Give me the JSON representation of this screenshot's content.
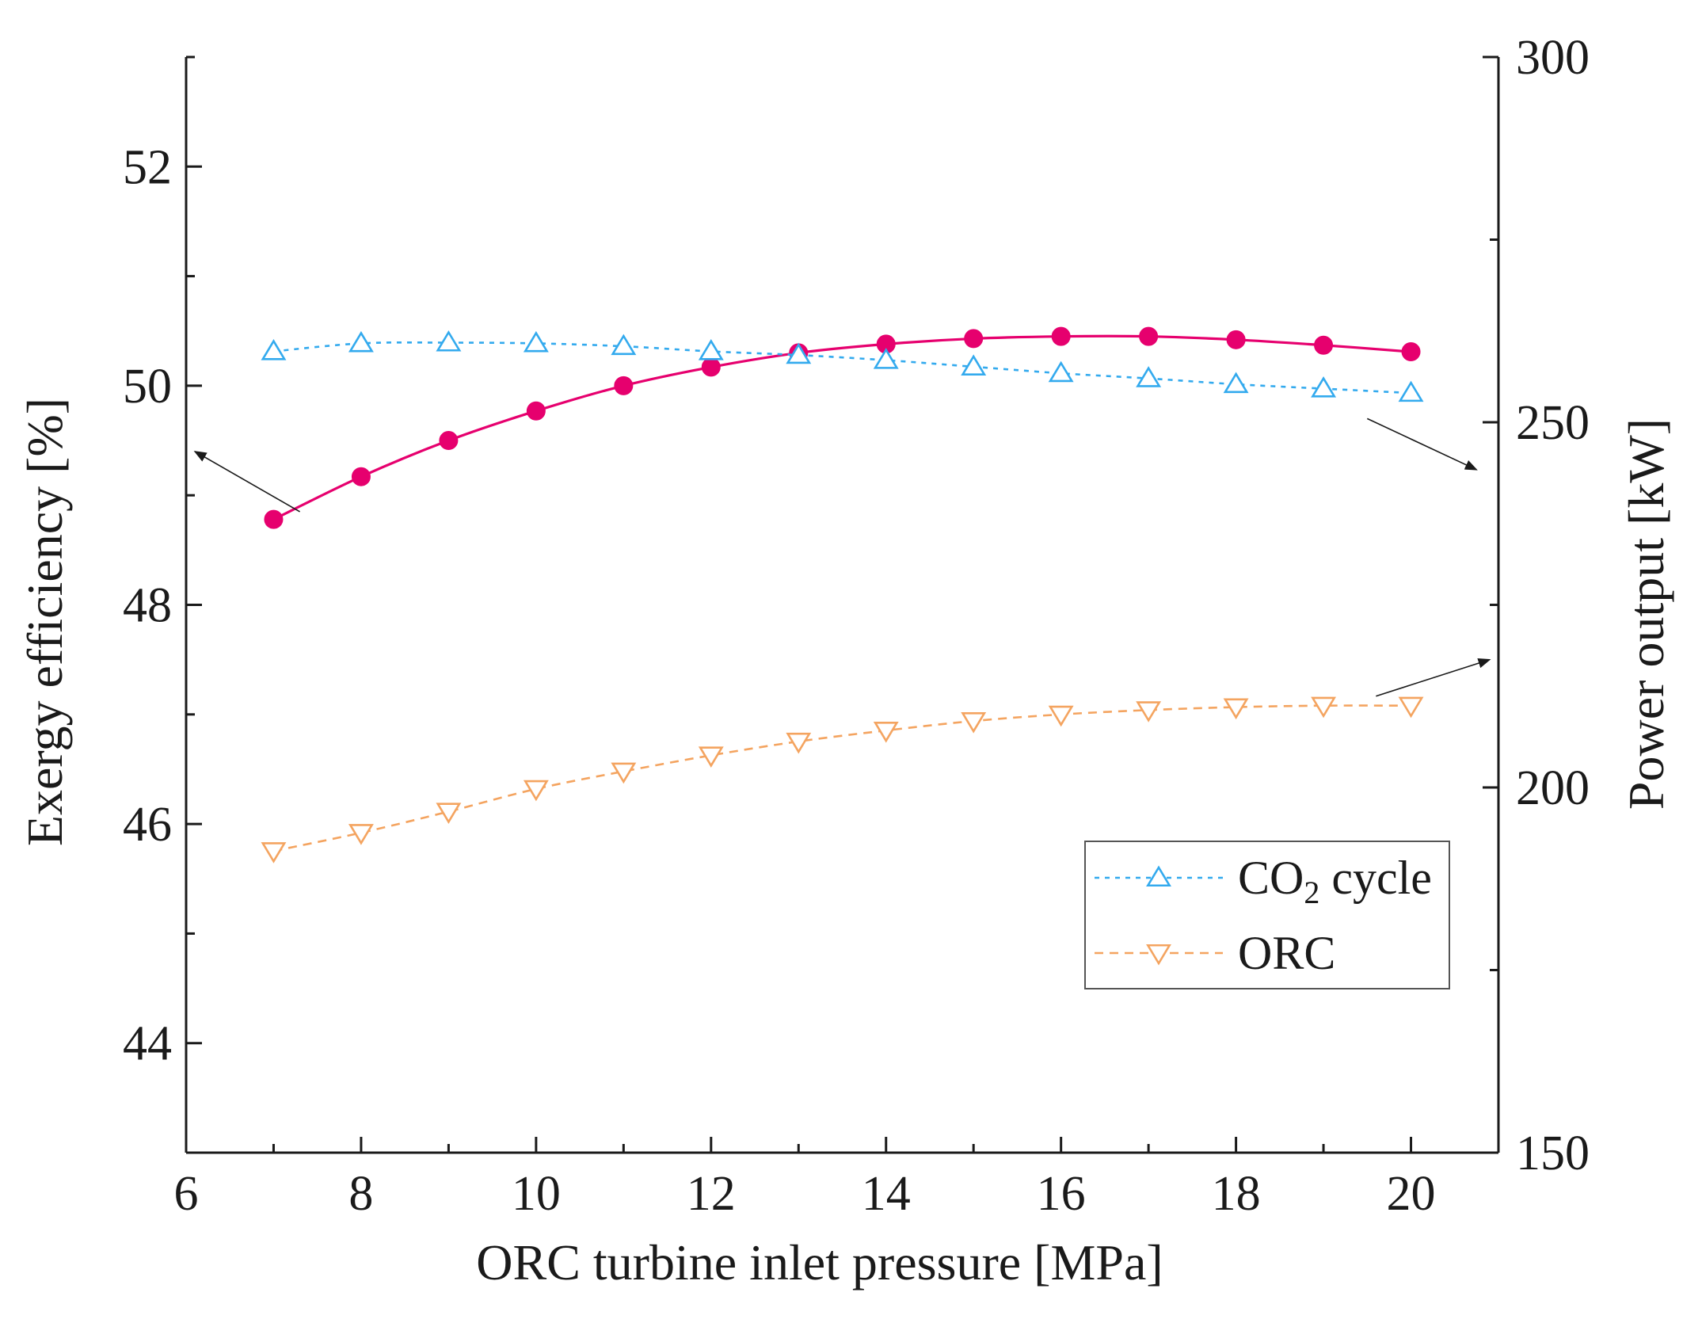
{
  "chart_data": {
    "type": "line",
    "xlabel": "ORC turbine inlet pressure [MPa]",
    "ylabel_left": "Exergy efficiency [%]",
    "ylabel_right": "Power output [kW]",
    "xlim": [
      6,
      21
    ],
    "ylim_left": [
      43,
      53
    ],
    "ylim_right": [
      150,
      300
    ],
    "x_ticks": [
      6,
      8,
      10,
      12,
      14,
      16,
      18,
      20
    ],
    "y_left_ticks": [
      44,
      46,
      48,
      50,
      52
    ],
    "y_right_ticks": [
      150,
      200,
      250,
      300
    ],
    "x": [
      7,
      8,
      9,
      10,
      11,
      12,
      13,
      14,
      15,
      16,
      17,
      18,
      19,
      20
    ],
    "series": [
      {
        "name": "Exergy efficiency",
        "axis": "left",
        "color": "#e6006e",
        "marker": "filled-circle",
        "line": "solid",
        "values": [
          48.78,
          49.17,
          49.5,
          49.77,
          50.0,
          50.17,
          50.3,
          50.38,
          50.43,
          50.45,
          50.45,
          50.42,
          50.37,
          50.31
        ]
      },
      {
        "name": "CO2 cycle",
        "axis": "right",
        "color": "#33aaee",
        "marker": "open-triangle-up",
        "line": "dotted",
        "values": [
          259.7,
          260.8,
          260.9,
          260.8,
          260.4,
          259.7,
          259.2,
          258.5,
          257.6,
          256.7,
          256.0,
          255.2,
          254.6,
          254.0
        ]
      },
      {
        "name": "ORC",
        "axis": "right",
        "color": "#f4a460",
        "marker": "open-triangle-down",
        "line": "dashed",
        "values": [
          191.3,
          193.8,
          196.7,
          199.8,
          202.2,
          204.4,
          206.3,
          207.8,
          209.1,
          210.0,
          210.6,
          211.0,
          211.2,
          211.2
        ]
      }
    ],
    "legend": {
      "position": "lower-right",
      "entries": [
        {
          "label_main": "CO",
          "label_sub": "2",
          "label_tail": " cycle",
          "series": 1
        },
        {
          "label_main": "ORC",
          "series": 2
        }
      ]
    },
    "annotations": [
      {
        "type": "arrow",
        "meaning": "efficiency curve reads on left axis",
        "from_data": [
          7.3,
          48.85
        ],
        "to_data": [
          6.1,
          49.4
        ]
      },
      {
        "type": "arrow",
        "meaning": "CO2 cycle curve reads on right axis",
        "from_data": [
          19.5,
          250.5
        ],
        "to_data": [
          20.75,
          243.5
        ]
      },
      {
        "type": "arrow",
        "meaning": "ORC curve reads on right axis",
        "from_data": [
          19.6,
          212.5
        ],
        "to_data": [
          20.9,
          217.5
        ]
      }
    ]
  }
}
